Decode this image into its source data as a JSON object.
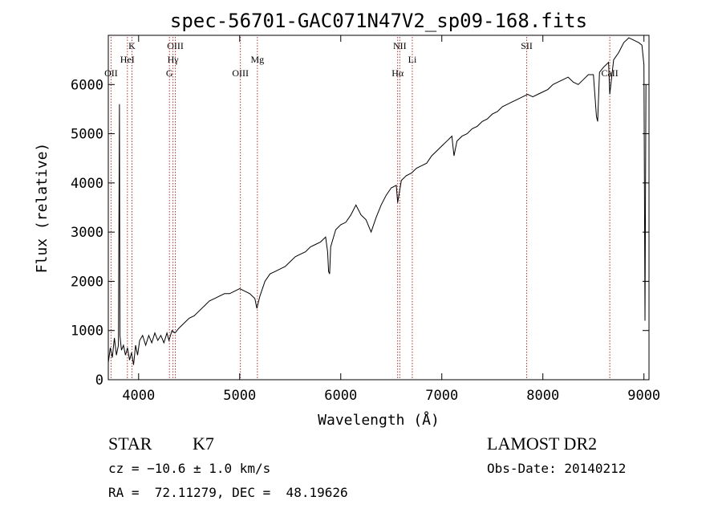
{
  "chart_data": {
    "type": "line",
    "title": "spec-56701-GAC071N47V2_sp09-168.fits",
    "xlabel": "Wavelength (Å)",
    "ylabel": "Flux (relative)",
    "xlim": [
      3700,
      9050
    ],
    "ylim": [
      0,
      7000
    ],
    "xticks": [
      4000,
      5000,
      6000,
      7000,
      8000,
      9000
    ],
    "yticks": [
      0,
      1000,
      2000,
      3000,
      4000,
      5000,
      6000
    ],
    "grid": false,
    "series": [
      {
        "points": [
          [
            3700,
            350
          ],
          [
            3720,
            650
          ],
          [
            3740,
            450
          ],
          [
            3760,
            850
          ],
          [
            3780,
            500
          ],
          [
            3800,
            700
          ],
          [
            3810,
            5600
          ],
          [
            3815,
            900
          ],
          [
            3830,
            600
          ],
          [
            3850,
            700
          ],
          [
            3870,
            500
          ],
          [
            3890,
            650
          ],
          [
            3910,
            400
          ],
          [
            3930,
            550
          ],
          [
            3950,
            300
          ],
          [
            3970,
            700
          ],
          [
            3990,
            500
          ],
          [
            4010,
            800
          ],
          [
            4040,
            900
          ],
          [
            4070,
            700
          ],
          [
            4100,
            900
          ],
          [
            4130,
            750
          ],
          [
            4160,
            950
          ],
          [
            4190,
            800
          ],
          [
            4220,
            900
          ],
          [
            4250,
            750
          ],
          [
            4280,
            950
          ],
          [
            4300,
            800
          ],
          [
            4330,
            1000
          ],
          [
            4360,
            950
          ],
          [
            4400,
            1050
          ],
          [
            4450,
            1150
          ],
          [
            4500,
            1250
          ],
          [
            4550,
            1300
          ],
          [
            4600,
            1400
          ],
          [
            4650,
            1500
          ],
          [
            4700,
            1600
          ],
          [
            4750,
            1650
          ],
          [
            4800,
            1700
          ],
          [
            4850,
            1750
          ],
          [
            4900,
            1750
          ],
          [
            4950,
            1800
          ],
          [
            5000,
            1850
          ],
          [
            5050,
            1800
          ],
          [
            5100,
            1750
          ],
          [
            5150,
            1650
          ],
          [
            5170,
            1450
          ],
          [
            5200,
            1700
          ],
          [
            5250,
            2000
          ],
          [
            5300,
            2150
          ],
          [
            5350,
            2200
          ],
          [
            5400,
            2250
          ],
          [
            5450,
            2300
          ],
          [
            5500,
            2400
          ],
          [
            5550,
            2500
          ],
          [
            5600,
            2550
          ],
          [
            5650,
            2600
          ],
          [
            5700,
            2700
          ],
          [
            5750,
            2750
          ],
          [
            5800,
            2800
          ],
          [
            5850,
            2900
          ],
          [
            5870,
            2600
          ],
          [
            5880,
            2200
          ],
          [
            5890,
            2150
          ],
          [
            5900,
            2700
          ],
          [
            5950,
            3050
          ],
          [
            6000,
            3150
          ],
          [
            6050,
            3200
          ],
          [
            6100,
            3350
          ],
          [
            6150,
            3550
          ],
          [
            6200,
            3350
          ],
          [
            6250,
            3250
          ],
          [
            6300,
            3000
          ],
          [
            6350,
            3300
          ],
          [
            6400,
            3550
          ],
          [
            6450,
            3750
          ],
          [
            6500,
            3900
          ],
          [
            6550,
            3950
          ],
          [
            6563,
            3600
          ],
          [
            6600,
            4050
          ],
          [
            6650,
            4150
          ],
          [
            6700,
            4200
          ],
          [
            6750,
            4300
          ],
          [
            6800,
            4350
          ],
          [
            6850,
            4400
          ],
          [
            6900,
            4550
          ],
          [
            6950,
            4650
          ],
          [
            7000,
            4750
          ],
          [
            7050,
            4850
          ],
          [
            7100,
            4950
          ],
          [
            7120,
            4550
          ],
          [
            7150,
            4850
          ],
          [
            7200,
            4950
          ],
          [
            7250,
            5000
          ],
          [
            7300,
            5100
          ],
          [
            7350,
            5150
          ],
          [
            7400,
            5250
          ],
          [
            7450,
            5300
          ],
          [
            7500,
            5400
          ],
          [
            7550,
            5450
          ],
          [
            7600,
            5550
          ],
          [
            7650,
            5600
          ],
          [
            7700,
            5650
          ],
          [
            7750,
            5700
          ],
          [
            7800,
            5750
          ],
          [
            7850,
            5800
          ],
          [
            7900,
            5750
          ],
          [
            7950,
            5800
          ],
          [
            8000,
            5850
          ],
          [
            8050,
            5900
          ],
          [
            8100,
            6000
          ],
          [
            8150,
            6050
          ],
          [
            8200,
            6100
          ],
          [
            8250,
            6150
          ],
          [
            8300,
            6050
          ],
          [
            8350,
            6000
          ],
          [
            8400,
            6100
          ],
          [
            8450,
            6200
          ],
          [
            8500,
            6200
          ],
          [
            8530,
            5350
          ],
          [
            8542,
            5250
          ],
          [
            8560,
            6250
          ],
          [
            8600,
            6350
          ],
          [
            8650,
            6450
          ],
          [
            8662,
            5800
          ],
          [
            8700,
            6500
          ],
          [
            8750,
            6650
          ],
          [
            8800,
            6850
          ],
          [
            8850,
            6950
          ],
          [
            8900,
            6900
          ],
          [
            8950,
            6850
          ],
          [
            8980,
            6800
          ],
          [
            9000,
            6400
          ],
          [
            9010,
            1200
          ],
          [
            9020,
            6000
          ]
        ]
      }
    ],
    "lines": [
      {
        "label": "OII",
        "wavelength": 3727,
        "row": 3
      },
      {
        "label": "K",
        "wavelength": 3934,
        "row": 1
      },
      {
        "label": "HeI",
        "wavelength": 3889,
        "row": 2
      },
      {
        "label": "OIII",
        "wavelength": 4363,
        "row": 1
      },
      {
        "label": "Hγ",
        "wavelength": 4340,
        "row": 2
      },
      {
        "label": "G",
        "wavelength": 4305,
        "row": 3
      },
      {
        "label": "OIII",
        "wavelength": 5007,
        "row": 3
      },
      {
        "label": "Mg",
        "wavelength": 5175,
        "row": 2
      },
      {
        "label": "NII",
        "wavelength": 6584,
        "row": 1
      },
      {
        "label": "Li",
        "wavelength": 6708,
        "row": 2
      },
      {
        "label": "Hα",
        "wavelength": 6563,
        "row": 3
      },
      {
        "label": "SII",
        "wavelength": 7840,
        "row": 1
      },
      {
        "label": "CaII",
        "wavelength": 8662,
        "row": 3
      }
    ],
    "line_color": "#000000",
    "marker_color": "#b03030"
  },
  "info": {
    "object_class": "STAR",
    "subclass": "K7",
    "survey": "LAMOST DR2",
    "redshift": "cz = −10.6 ± 1.0 km/s",
    "obs_date": "Obs-Date: 20140212",
    "coords": "RA =  72.11279, DEC =  48.19626"
  }
}
